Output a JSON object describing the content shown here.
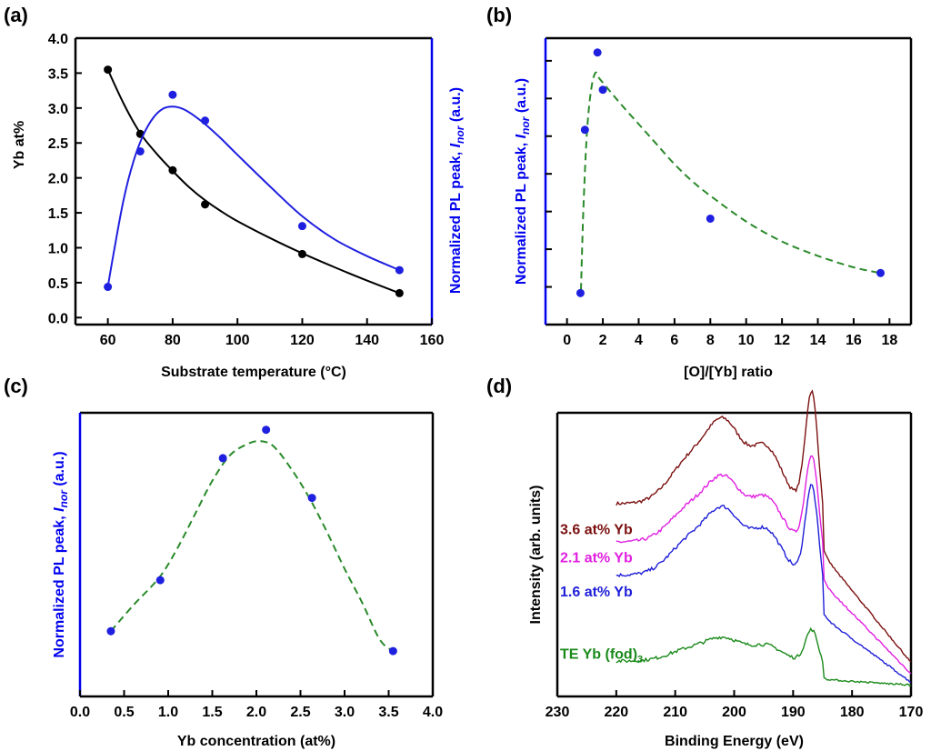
{
  "colors": {
    "black": "#000000",
    "blue": "#1f1fe0",
    "blue_axis": "#0000ee",
    "green": "#2a8a2a",
    "trace_36": "#7b1010",
    "trace_21": "#e020e0",
    "trace_16": "#1f1fd8",
    "trace_te": "#1a8a1a"
  },
  "chart_data": [
    {
      "panel": "(a)",
      "type": "scatter",
      "xlabel": "Substrate temperature (°C)",
      "ylabel": "Yb at%",
      "ylabel_right_parts": [
        "Normalized PL peak, ",
        "I",
        "nor",
        " (a.u.)"
      ],
      "xlim": [
        50,
        160
      ],
      "xticks": [
        "60",
        "80",
        "100",
        "120",
        "140",
        "160"
      ],
      "ylim": [
        -0.1,
        4.0
      ],
      "yticks": [
        "0.0",
        "0.5",
        "1.0",
        "1.5",
        "2.0",
        "2.5",
        "3.0",
        "3.5",
        "4.0"
      ],
      "series": [
        {
          "axis": "left",
          "color": "black",
          "x": [
            60,
            70,
            80,
            90,
            120,
            150
          ],
          "y": [
            3.55,
            2.63,
            2.11,
            1.62,
            0.91,
            0.35
          ],
          "fit_x": [
            60,
            65,
            70,
            75,
            80,
            85,
            90,
            95,
            100,
            110,
            120,
            130,
            140,
            150
          ],
          "fit_y": [
            3.55,
            3.05,
            2.64,
            2.35,
            2.1,
            1.87,
            1.68,
            1.52,
            1.38,
            1.14,
            0.92,
            0.72,
            0.53,
            0.35
          ]
        },
        {
          "axis": "right",
          "color": "blue",
          "x": [
            60,
            70,
            80,
            90,
            120,
            150
          ],
          "y": [
            0.44,
            2.38,
            3.19,
            2.82,
            1.31,
            0.68
          ],
          "fit_x": [
            60,
            62,
            65,
            68,
            71,
            74,
            77,
            80,
            83,
            86,
            90,
            95,
            100,
            110,
            120,
            130,
            140,
            150
          ],
          "fit_y": [
            0.44,
            0.98,
            1.72,
            2.25,
            2.62,
            2.86,
            2.99,
            3.02,
            2.99,
            2.91,
            2.77,
            2.56,
            2.33,
            1.88,
            1.45,
            1.12,
            0.88,
            0.68
          ]
        }
      ]
    },
    {
      "panel": "(b)",
      "type": "scatter",
      "xlabel": "[O]/[Yb] ratio",
      "ylabel_parts": [
        "Normalized PL peak, ",
        "I",
        "nor",
        " (a.u.)"
      ],
      "xlim": [
        -1.2,
        19.2
      ],
      "xticks": [
        "0",
        "2",
        "4",
        "6",
        "8",
        "10",
        "12",
        "14",
        "16",
        "18"
      ],
      "ylim": [
        0,
        1
      ],
      "y_tick_count": 7,
      "series": [
        {
          "color": "blue",
          "x": [
            0.75,
            1.0,
            1.7,
            2.0,
            8.0,
            17.5
          ],
          "y": [
            0.11,
            0.68,
            0.95,
            0.82,
            0.37,
            0.18
          ],
          "fit_color": "green",
          "fit_x": [
            0.78,
            0.9,
            1.05,
            1.2,
            1.4,
            1.6,
            1.8,
            2.2,
            3.0,
            4.0,
            5.0,
            6.0,
            7.0,
            8.0,
            10.0,
            12.0,
            14.0,
            16.0,
            17.5
          ],
          "fit_y": [
            0.12,
            0.38,
            0.6,
            0.74,
            0.84,
            0.88,
            0.86,
            0.83,
            0.77,
            0.7,
            0.63,
            0.56,
            0.5,
            0.45,
            0.36,
            0.29,
            0.24,
            0.2,
            0.18
          ]
        }
      ]
    },
    {
      "panel": "(c)",
      "type": "scatter",
      "xlabel": "Yb concentration (at%)",
      "ylabel_parts": [
        "Normalized PL peak, ",
        "I",
        "nor",
        " (a.u.)"
      ],
      "xlim": [
        0,
        4.0
      ],
      "xticks": [
        "0.0",
        "0.5",
        "1.0",
        "1.5",
        "2.0",
        "2.5",
        "3.0",
        "3.5",
        "4.0"
      ],
      "ylim": [
        0,
        1
      ],
      "series": [
        {
          "color": "blue",
          "x": [
            0.35,
            0.91,
            1.62,
            2.11,
            2.63,
            3.55
          ],
          "y": [
            0.23,
            0.41,
            0.84,
            0.94,
            0.7,
            0.16
          ],
          "fit_color": "green",
          "fit_x": [
            0.35,
            0.6,
            0.9,
            1.1,
            1.3,
            1.5,
            1.7,
            1.9,
            2.05,
            2.2,
            2.4,
            2.6,
            2.8,
            3.0,
            3.2,
            3.4,
            3.55
          ],
          "fit_y": [
            0.23,
            0.32,
            0.42,
            0.52,
            0.64,
            0.76,
            0.85,
            0.89,
            0.9,
            0.88,
            0.8,
            0.7,
            0.58,
            0.45,
            0.33,
            0.2,
            0.16
          ]
        }
      ]
    },
    {
      "panel": "(d)",
      "type": "line",
      "xlabel": "Binding Energy (eV)",
      "ylabel": "Intensity (arb. units)",
      "xlim": [
        230,
        170
      ],
      "xticks": [
        "230",
        "220",
        "210",
        "200",
        "190",
        "180",
        "170"
      ],
      "ylim": [
        0,
        1
      ],
      "series": [
        {
          "name": "3.6 at% Yb",
          "color": "trace_36",
          "offset": 0.52,
          "scale": 1.0
        },
        {
          "name": "2.1 at% Yb",
          "color": "trace_21",
          "offset": 0.42,
          "scale": 0.78
        },
        {
          "name": "1.6 at% Yb",
          "color": "trace_16",
          "offset": 0.3,
          "scale": 0.8
        },
        {
          "name_parts": [
            "TE Yb (fod)",
            "3"
          ],
          "color": "trace_te",
          "offset": 0.08,
          "scale": 0.28
        }
      ]
    }
  ]
}
